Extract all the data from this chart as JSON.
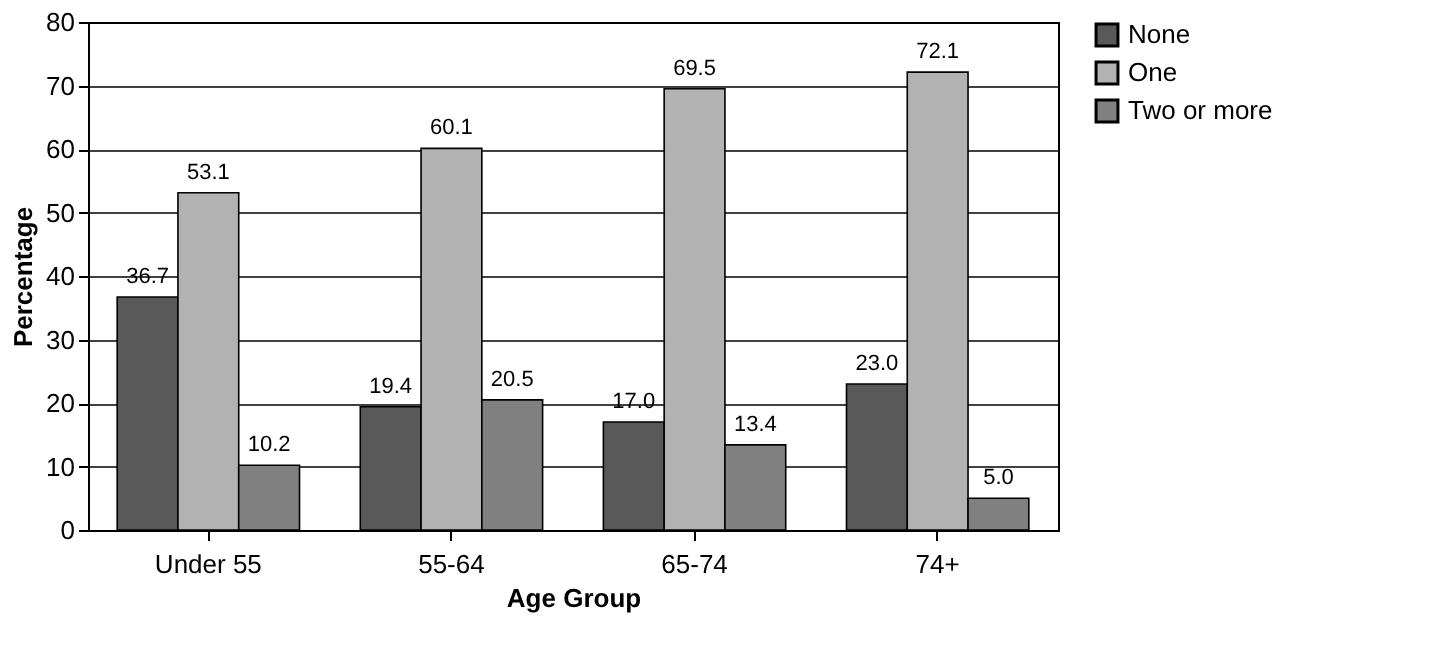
{
  "chart_data": {
    "type": "bar",
    "xlabel": "Age Group",
    "ylabel": "Percentage",
    "categories": [
      "Under 55",
      "55-64",
      "65-74",
      "74+"
    ],
    "series": [
      {
        "name": "None",
        "color": "#595959",
        "values": [
          36.7,
          19.4,
          17.0,
          23.0
        ],
        "value_labels": [
          "36.7",
          "19.4",
          "17.0",
          "23.0"
        ]
      },
      {
        "name": "One",
        "color": "#b2b2b2",
        "values": [
          53.1,
          60.1,
          69.5,
          72.1
        ],
        "value_labels": [
          "53.1",
          "60.1",
          "69.5",
          "72.1"
        ]
      },
      {
        "name": "Two or more",
        "color": "#808080",
        "values": [
          10.2,
          20.5,
          13.4,
          5.0
        ],
        "value_labels": [
          "10.2",
          "20.5",
          "13.4",
          "5.0"
        ]
      }
    ],
    "ylim": [
      0,
      80
    ],
    "yticks": [
      0,
      10,
      20,
      30,
      40,
      50,
      60,
      70,
      80
    ],
    "grid": "y",
    "legend": "right"
  }
}
